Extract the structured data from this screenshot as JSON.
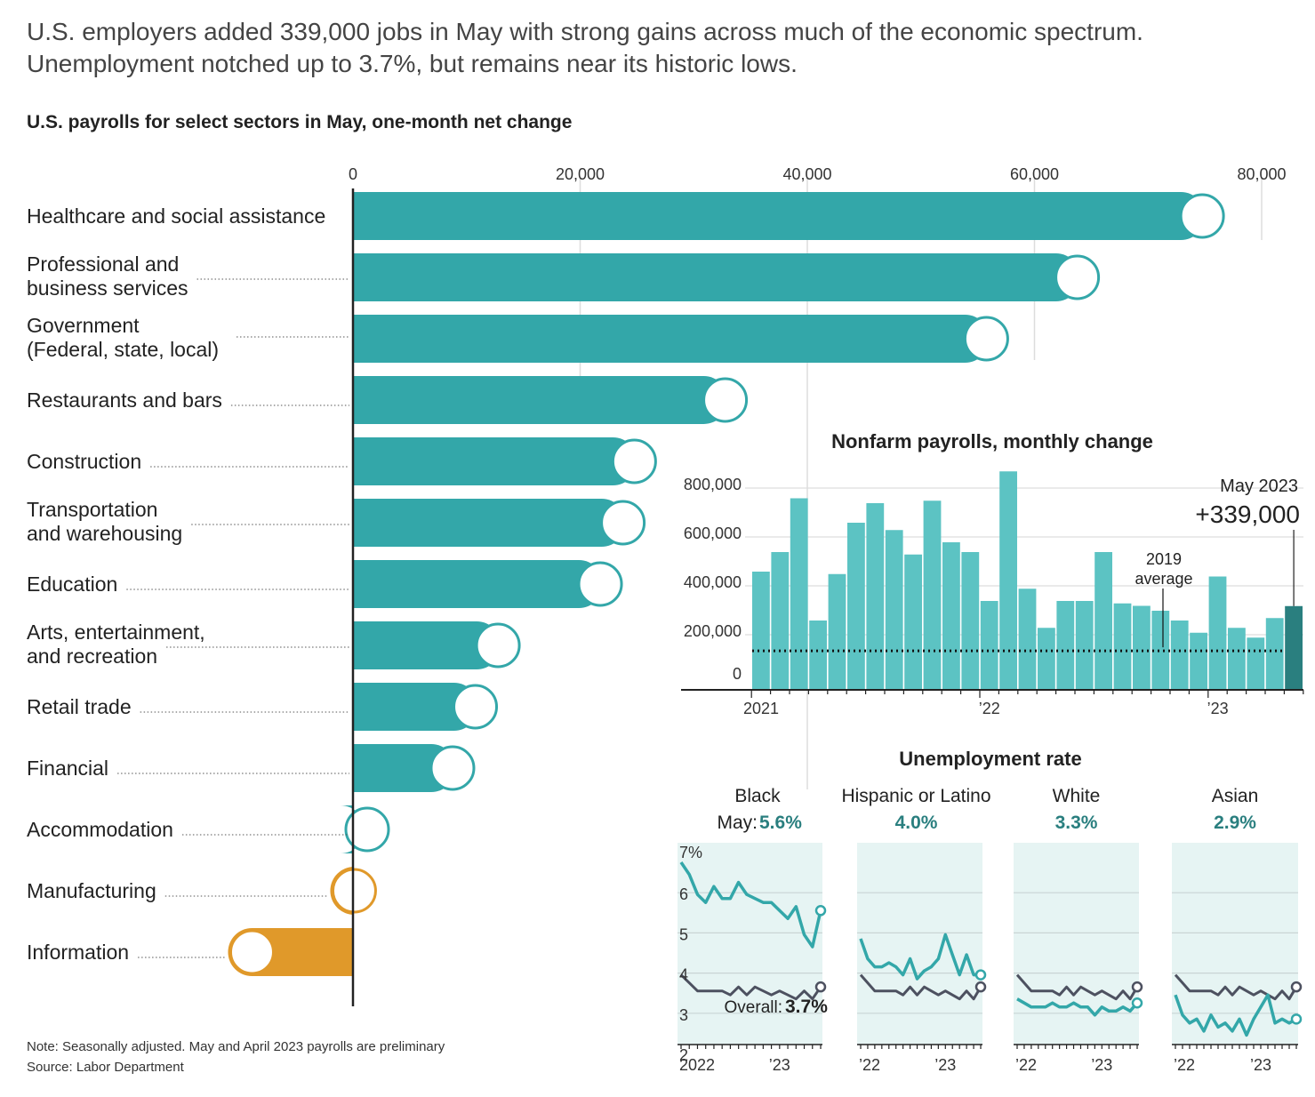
{
  "headline": [
    "U.S. employers added 339,000 jobs in May with strong gains across much of the economic spectrum.",
    "Unemployment notched up to 3.7%, but remains near its historic lows."
  ],
  "colors": {
    "teal": "#33a7a9",
    "teal_light": "#5cc3c3",
    "teal_dark": "#2a7f7f",
    "orange": "#e0992a",
    "panel_bg": "#e6f4f3",
    "overall_line": "#4d5160",
    "grid": "#dddddd"
  },
  "chart_data": [
    {
      "type": "bar",
      "orientation": "horizontal",
      "title": "U.S. payrolls for select sectors in May, one-month net change",
      "categories": [
        "Healthcare and social assistance",
        "Professional and business services",
        "Government (Federal, state, local)",
        "Restaurants and bars",
        "Construction",
        "Transportation and warehousing",
        "Education",
        "Arts, entertainment, and recreation",
        "Retail trade",
        "Financial",
        "Accommodation",
        "Manufacturing",
        "Information"
      ],
      "label_lines": [
        [
          "Healthcare and social assistance"
        ],
        [
          "Professional and",
          "business services"
        ],
        [
          "Government",
          "(Federal, state, local)"
        ],
        [
          "Restaurants and bars"
        ],
        [
          "Construction"
        ],
        [
          "Transportation",
          "and warehousing"
        ],
        [
          "Education"
        ],
        [
          "Arts, entertainment,",
          "and recreation"
        ],
        [
          "Retail trade"
        ],
        [
          "Financial"
        ],
        [
          "Accommodation"
        ],
        [
          "Manufacturing"
        ],
        [
          "Information"
        ]
      ],
      "values": [
        75000,
        64000,
        56000,
        33000,
        25000,
        24000,
        22000,
        13000,
        11000,
        9000,
        1000,
        -2000,
        -11000
      ],
      "xlim": [
        -11000,
        80000
      ],
      "xticks": [
        0,
        20000,
        40000,
        60000,
        80000
      ],
      "xtick_labels": [
        "0",
        "20,000",
        "40,000",
        "60,000",
        "80,000"
      ]
    },
    {
      "type": "bar",
      "title": "Nonfarm payrolls, monthly change",
      "values": [
        480000,
        560000,
        780000,
        280000,
        470000,
        680000,
        760000,
        650000,
        550000,
        770000,
        600000,
        560000,
        360000,
        890000,
        410000,
        250000,
        360000,
        360000,
        560000,
        350000,
        340000,
        320000,
        280000,
        230000,
        460000,
        250000,
        210000,
        290000,
        339000
      ],
      "highlight_index": 28,
      "ylim": [
        0,
        900000
      ],
      "yticks": [
        0,
        200000,
        400000,
        600000,
        800000
      ],
      "ytick_labels": [
        "0",
        "200,000",
        "400,000",
        "600,000",
        "800,000"
      ],
      "xtick_labels": [
        "2021",
        "’22",
        "’23"
      ],
      "reference_line": {
        "label_lines": [
          "2019",
          "average"
        ],
        "value": 163000
      },
      "annotation": {
        "label": "May 2023",
        "value": "+339,000"
      }
    },
    {
      "type": "line",
      "title": "Unemployment rate",
      "ylim": [
        2,
        7
      ],
      "ytick_labels": [
        "7%",
        "6",
        "5",
        "4",
        "3",
        "2"
      ],
      "overall_label": "Overall:",
      "overall_value": "3.7%",
      "panels": [
        {
          "name": "Black",
          "prefix": "May:",
          "value": "5.6%",
          "xtick_labels": [
            "2022",
            "’23"
          ],
          "series": [
            6.8,
            6.5,
            6.0,
            5.8,
            6.2,
            5.9,
            5.9,
            6.3,
            6.0,
            5.9,
            5.8,
            5.8,
            5.6,
            5.4,
            5.7,
            5.0,
            4.7,
            5.6
          ],
          "overall": [
            4.0,
            3.8,
            3.6,
            3.6,
            3.6,
            3.6,
            3.5,
            3.7,
            3.5,
            3.7,
            3.6,
            3.5,
            3.6,
            3.5,
            3.4,
            3.6,
            3.4,
            3.7
          ]
        },
        {
          "name": "Hispanic or Latino",
          "prefix": "",
          "value": "4.0%",
          "xtick_labels": [
            "’22",
            "’23"
          ],
          "series": [
            4.9,
            4.4,
            4.2,
            4.2,
            4.3,
            4.2,
            4.0,
            4.4,
            3.9,
            4.1,
            4.2,
            4.4,
            5.0,
            4.5,
            4.0,
            4.5,
            4.0,
            4.0
          ],
          "overall": [
            4.0,
            3.8,
            3.6,
            3.6,
            3.6,
            3.6,
            3.5,
            3.7,
            3.5,
            3.7,
            3.6,
            3.5,
            3.6,
            3.5,
            3.4,
            3.6,
            3.4,
            3.7
          ]
        },
        {
          "name": "White",
          "prefix": "",
          "value": "3.3%",
          "xtick_labels": [
            "’22",
            "’23"
          ],
          "series": [
            3.4,
            3.3,
            3.2,
            3.2,
            3.2,
            3.3,
            3.2,
            3.2,
            3.3,
            3.2,
            3.2,
            3.0,
            3.2,
            3.1,
            3.1,
            3.2,
            3.1,
            3.3
          ],
          "overall": [
            4.0,
            3.8,
            3.6,
            3.6,
            3.6,
            3.6,
            3.5,
            3.7,
            3.5,
            3.7,
            3.6,
            3.5,
            3.6,
            3.5,
            3.4,
            3.6,
            3.4,
            3.7
          ]
        },
        {
          "name": "Asian",
          "prefix": "",
          "value": "2.9%",
          "xtick_labels": [
            "’22",
            "’23"
          ],
          "series": [
            3.5,
            3.0,
            2.8,
            2.9,
            2.6,
            3.0,
            2.7,
            2.8,
            2.6,
            2.9,
            2.5,
            2.9,
            3.2,
            3.5,
            2.8,
            2.9,
            2.8,
            2.9
          ],
          "overall": [
            4.0,
            3.8,
            3.6,
            3.6,
            3.6,
            3.6,
            3.5,
            3.7,
            3.5,
            3.7,
            3.6,
            3.5,
            3.6,
            3.5,
            3.4,
            3.6,
            3.4,
            3.7
          ]
        }
      ]
    }
  ],
  "footer": {
    "note": "Note: Seasonally adjusted. May and April 2023 payrolls are preliminary",
    "source": "Source: Labor Department"
  }
}
